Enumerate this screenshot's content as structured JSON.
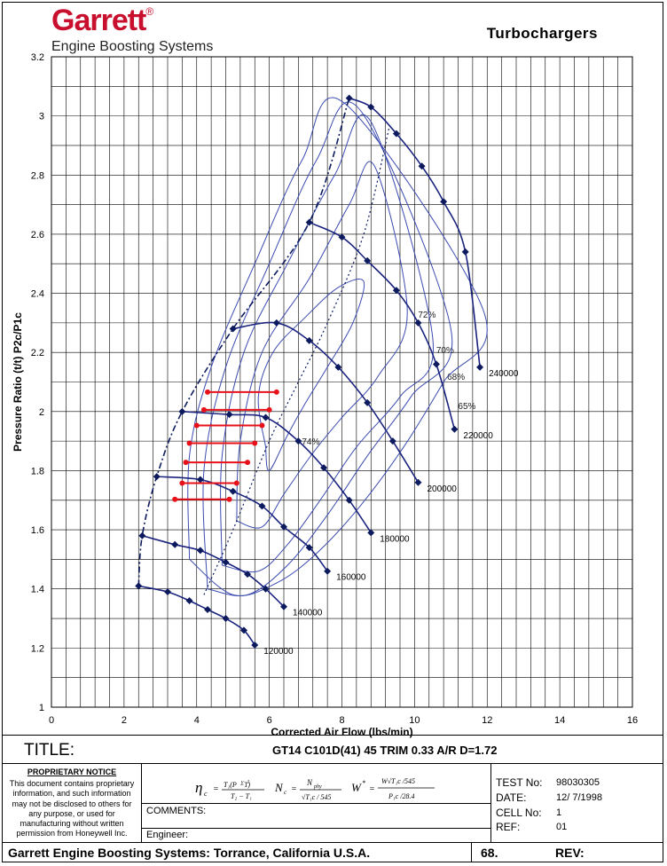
{
  "header": {
    "brand": "Garrett",
    "registered": "®",
    "tagline": "Engine Boosting Systems",
    "document_type": "Turbochargers"
  },
  "chart_data": {
    "type": "scatter",
    "xlabel": "Corrected Air Flow (lbs/min)",
    "ylabel": "Pressure Ratio (t/t) P2c/P1c",
    "xlim": [
      0,
      16
    ],
    "ylim": [
      1,
      3.2
    ],
    "x_ticks": [
      0,
      2,
      4,
      6,
      8,
      10,
      12,
      14,
      16
    ],
    "y_ticks": [
      1,
      1.2,
      1.4,
      1.6,
      1.8,
      2,
      2.2,
      2.4,
      2.6,
      2.8,
      3,
      3.2
    ],
    "grid": true,
    "colors": {
      "series": "#1a237e",
      "markers": "#0d1b5e",
      "efficiency": "#3b4bb0",
      "overlay": "#e8111a"
    },
    "speed_lines": [
      {
        "name": "120000",
        "points": [
          [
            2.4,
            1.41
          ],
          [
            3.2,
            1.39
          ],
          [
            3.8,
            1.36
          ],
          [
            4.3,
            1.33
          ],
          [
            4.8,
            1.3
          ],
          [
            5.3,
            1.26
          ],
          [
            5.6,
            1.21
          ]
        ]
      },
      {
        "name": "140000",
        "points": [
          [
            2.5,
            1.58
          ],
          [
            3.4,
            1.55
          ],
          [
            4.1,
            1.53
          ],
          [
            4.8,
            1.49
          ],
          [
            5.4,
            1.45
          ],
          [
            5.9,
            1.4
          ],
          [
            6.4,
            1.34
          ]
        ]
      },
      {
        "name": "160000",
        "points": [
          [
            2.9,
            1.78
          ],
          [
            4.1,
            1.77
          ],
          [
            5.0,
            1.73
          ],
          [
            5.8,
            1.68
          ],
          [
            6.4,
            1.61
          ],
          [
            7.1,
            1.54
          ],
          [
            7.6,
            1.46
          ]
        ]
      },
      {
        "name": "180000",
        "points": [
          [
            3.6,
            2.0
          ],
          [
            4.9,
            1.99
          ],
          [
            5.9,
            1.98
          ],
          [
            6.8,
            1.9
          ],
          [
            7.5,
            1.81
          ],
          [
            8.2,
            1.7
          ],
          [
            8.8,
            1.59
          ]
        ]
      },
      {
        "name": "200000",
        "points": [
          [
            5.0,
            2.28
          ],
          [
            6.2,
            2.3
          ],
          [
            7.1,
            2.24
          ],
          [
            7.9,
            2.15
          ],
          [
            8.7,
            2.03
          ],
          [
            9.4,
            1.9
          ],
          [
            10.1,
            1.76
          ]
        ]
      },
      {
        "name": "220000",
        "points": [
          [
            7.1,
            2.64
          ],
          [
            8.0,
            2.59
          ],
          [
            8.7,
            2.51
          ],
          [
            9.5,
            2.41
          ],
          [
            10.1,
            2.3
          ],
          [
            10.6,
            2.16
          ],
          [
            11.1,
            1.94
          ]
        ]
      },
      {
        "name": "240000",
        "points": [
          [
            8.2,
            3.06
          ],
          [
            8.8,
            3.03
          ],
          [
            9.5,
            2.94
          ],
          [
            10.2,
            2.83
          ],
          [
            10.8,
            2.71
          ],
          [
            11.4,
            2.54
          ],
          [
            11.8,
            2.15
          ]
        ]
      }
    ],
    "surge_line": [
      [
        2.4,
        1.41
      ],
      [
        2.5,
        1.58
      ],
      [
        2.9,
        1.78
      ],
      [
        3.6,
        2.0
      ],
      [
        5.0,
        2.28
      ],
      [
        7.1,
        2.64
      ],
      [
        8.2,
        3.06
      ]
    ],
    "efficiency_islands": [
      {
        "label": "74%",
        "points": [
          [
            5.9,
            1.88
          ],
          [
            5.7,
            2.05
          ],
          [
            6.1,
            2.2
          ],
          [
            7.0,
            2.32
          ],
          [
            7.9,
            2.42
          ],
          [
            8.6,
            2.44
          ],
          [
            8.3,
            2.3
          ],
          [
            7.6,
            2.15
          ],
          [
            7.0,
            2.03
          ],
          [
            6.5,
            1.92
          ],
          [
            6.0,
            1.8
          ],
          [
            5.9,
            1.88
          ]
        ]
      },
      {
        "label": "72%",
        "points": [
          [
            5.1,
            1.63
          ],
          [
            5.2,
            1.9
          ],
          [
            5.8,
            2.2
          ],
          [
            7.1,
            2.45
          ],
          [
            8.2,
            2.7
          ],
          [
            8.9,
            2.83
          ],
          [
            9.8,
            2.34
          ],
          [
            9.0,
            2.12
          ],
          [
            8.0,
            1.98
          ],
          [
            7.2,
            1.86
          ],
          [
            6.4,
            1.72
          ],
          [
            5.8,
            1.61
          ],
          [
            5.1,
            1.63
          ]
        ]
      },
      {
        "label": "70%",
        "points": [
          [
            4.7,
            1.48
          ],
          [
            4.7,
            1.85
          ],
          [
            5.3,
            2.2
          ],
          [
            6.5,
            2.5
          ],
          [
            7.8,
            2.8
          ],
          [
            8.8,
            2.98
          ],
          [
            10.5,
            2.25
          ],
          [
            9.6,
            2.05
          ],
          [
            8.4,
            1.88
          ],
          [
            7.4,
            1.7
          ],
          [
            6.5,
            1.55
          ],
          [
            5.7,
            1.46
          ],
          [
            4.7,
            1.48
          ]
        ]
      },
      {
        "label": "68%",
        "points": [
          [
            4.3,
            1.4
          ],
          [
            4.2,
            1.8
          ],
          [
            4.8,
            2.15
          ],
          [
            6.0,
            2.5
          ],
          [
            7.3,
            2.85
          ],
          [
            8.5,
            3.02
          ],
          [
            11.0,
            2.28
          ],
          [
            9.9,
            2.05
          ],
          [
            8.7,
            1.85
          ],
          [
            7.6,
            1.65
          ],
          [
            6.5,
            1.48
          ],
          [
            5.4,
            1.38
          ],
          [
            4.3,
            1.4
          ]
        ]
      },
      {
        "label": "65%",
        "points": [
          [
            3.8,
            1.5
          ],
          [
            3.8,
            1.85
          ],
          [
            4.4,
            2.15
          ],
          [
            5.6,
            2.5
          ],
          [
            6.9,
            2.85
          ],
          [
            8.1,
            3.04
          ],
          [
            11.9,
            2.34
          ],
          [
            10.8,
            2.1
          ],
          [
            9.7,
            1.88
          ],
          [
            8.5,
            1.68
          ],
          [
            7.3,
            1.52
          ],
          [
            6.2,
            1.42
          ],
          [
            5.0,
            1.38
          ],
          [
            3.8,
            1.5
          ]
        ]
      }
    ],
    "dotted_line": [
      [
        4.2,
        1.38
      ],
      [
        5.0,
        1.6
      ],
      [
        6.0,
        1.9
      ],
      [
        6.8,
        2.1
      ],
      [
        7.6,
        2.3
      ],
      [
        8.6,
        2.6
      ],
      [
        9.3,
        2.96
      ]
    ],
    "red_overlay": [
      {
        "x": [
          4.3,
          6.2
        ],
        "y": 2.066
      },
      {
        "x": [
          4.2,
          6.0
        ],
        "y": 2.006
      },
      {
        "x": [
          4.0,
          5.8
        ],
        "y": 1.953
      },
      {
        "x": [
          3.8,
          5.6
        ],
        "y": 1.893
      },
      {
        "x": [
          3.7,
          5.4
        ],
        "y": 1.828
      },
      {
        "x": [
          3.6,
          5.1
        ],
        "y": 1.758
      },
      {
        "x": [
          3.4,
          4.9
        ],
        "y": 1.703
      }
    ]
  },
  "title_block": {
    "title_label": "TITLE:",
    "title_value": "GT14 C101D(41) 45 TRIM 0.33 A/R D=1.72",
    "notice_heading": "PROPRIETARY NOTICE",
    "notice_lines": [
      "This document contains proprietary",
      "information, and such information",
      "may not be disclosed to others for",
      "any purpose, or used for",
      "manufacturing without written",
      "permission from Honeywell Inc."
    ],
    "comments_label": "COMMENTS:",
    "engineer_label": "Engineer:",
    "test_no_label": "TEST No:",
    "test_no_value": "98030305",
    "date_label": "DATE:",
    "date_value": "12/ 7/1998",
    "cell_label": "CELL No:",
    "cell_value": "1",
    "ref_label": "REF:",
    "ref_value": "01",
    "footer_company": "Garrett Engine Boosting Systems: Torrance, California U.S.A.",
    "footer_number": "68.",
    "rev_label": "REV:"
  }
}
